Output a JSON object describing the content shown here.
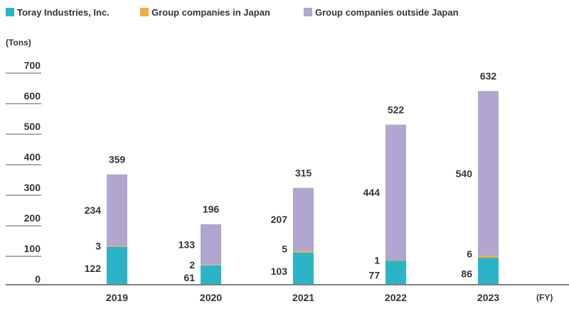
{
  "chart_data": {
    "type": "bar",
    "stacked": true,
    "categories": [
      "2019",
      "2020",
      "2021",
      "2022",
      "2023"
    ],
    "series": [
      {
        "name": "Toray Industries, Inc.",
        "values": [
          122,
          61,
          103,
          77,
          86
        ],
        "color": "#2bb4c8"
      },
      {
        "name": "Group companies in Japan",
        "values": [
          3,
          2,
          5,
          1,
          6
        ],
        "color": "#f5ac3c"
      },
      {
        "name": "Group companies outside Japan",
        "values": [
          234,
          133,
          207,
          444,
          540
        ],
        "color": "#b0a6d0"
      }
    ],
    "totals": [
      359,
      196,
      315,
      522,
      632
    ],
    "y_ticks": [
      "0",
      "100",
      "200",
      "300",
      "400",
      "500",
      "600",
      "700"
    ],
    "ylim": [
      0,
      700
    ],
    "ylabel": "(Tons)",
    "xlabel": "(FY)",
    "legend_position": "top",
    "grid": true
  }
}
